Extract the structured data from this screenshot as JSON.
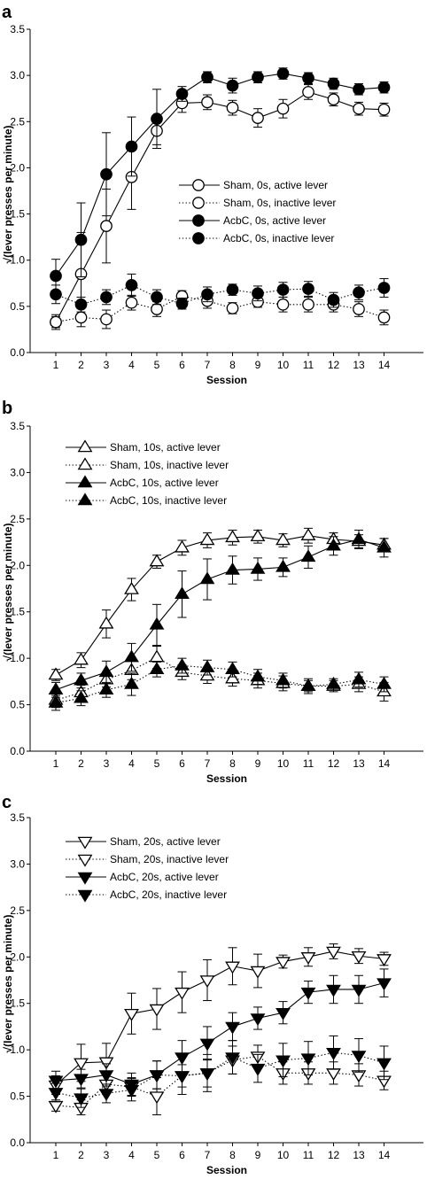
{
  "chart_data": [
    {
      "type": "line",
      "panel_label": "a",
      "xlabel": "Session",
      "ylabel": "√(lever presses per minute)",
      "x": [
        1,
        2,
        3,
        4,
        5,
        6,
        7,
        8,
        9,
        10,
        11,
        12,
        13,
        14
      ],
      "xticks": [
        "1",
        "2",
        "3",
        "4",
        "5",
        "6",
        "7",
        "8",
        "9",
        "10",
        "11",
        "12",
        "13",
        "14"
      ],
      "ylim": [
        0,
        3.5
      ],
      "yticks": [
        "0.0",
        "0.5",
        "1.0",
        "1.5",
        "2.0",
        "2.5",
        "3.0",
        "3.5"
      ],
      "legend_position": "center-right",
      "marker": "circle",
      "series": [
        {
          "name": "Sham, 0s, active lever",
          "filled": false,
          "line": "solid",
          "values": [
            0.33,
            0.85,
            1.37,
            1.9,
            2.4,
            2.7,
            2.71,
            2.65,
            2.54,
            2.64,
            2.82,
            2.74,
            2.64,
            2.63
          ],
          "errors": [
            0.08,
            0.45,
            0.4,
            0.35,
            0.15,
            0.1,
            0.08,
            0.08,
            0.1,
            0.1,
            0.08,
            0.07,
            0.07,
            0.07
          ]
        },
        {
          "name": "Sham, 0s, inactive lever",
          "filled": false,
          "line": "dotted",
          "values": [
            0.33,
            0.38,
            0.36,
            0.54,
            0.47,
            0.61,
            0.56,
            0.48,
            0.55,
            0.52,
            0.52,
            0.52,
            0.47,
            0.38
          ],
          "errors": [
            0.06,
            0.1,
            0.1,
            0.08,
            0.08,
            0.06,
            0.08,
            0.06,
            0.06,
            0.08,
            0.08,
            0.08,
            0.08,
            0.08
          ]
        },
        {
          "name": "AcbC, 0s, active lever",
          "filled": true,
          "line": "solid",
          "values": [
            0.83,
            1.22,
            1.93,
            2.23,
            2.53,
            2.8,
            2.98,
            2.89,
            2.98,
            3.02,
            2.97,
            2.91,
            2.85,
            2.87
          ],
          "errors": [
            0.18,
            0.4,
            0.45,
            0.32,
            0.32,
            0.08,
            0.06,
            0.08,
            0.06,
            0.06,
            0.06,
            0.06,
            0.06,
            0.06
          ]
        },
        {
          "name": "AcbC, 0s, inactive lever",
          "filled": true,
          "line": "dotted",
          "values": [
            0.63,
            0.52,
            0.6,
            0.73,
            0.6,
            0.53,
            0.63,
            0.68,
            0.64,
            0.68,
            0.69,
            0.57,
            0.65,
            0.7
          ],
          "errors": [
            0.1,
            0.08,
            0.08,
            0.12,
            0.08,
            0.06,
            0.08,
            0.06,
            0.08,
            0.08,
            0.08,
            0.08,
            0.08,
            0.1
          ]
        }
      ]
    },
    {
      "type": "line",
      "panel_label": "b",
      "xlabel": "Session",
      "ylabel": "√(lever presses per minute)",
      "x": [
        1,
        2,
        3,
        4,
        5,
        6,
        7,
        8,
        9,
        10,
        11,
        12,
        13,
        14
      ],
      "xticks": [
        "1",
        "2",
        "3",
        "4",
        "5",
        "6",
        "7",
        "8",
        "9",
        "10",
        "11",
        "12",
        "13",
        "14"
      ],
      "ylim": [
        0,
        3.5
      ],
      "yticks": [
        "0.0",
        "0.5",
        "1.0",
        "1.5",
        "2.0",
        "2.5",
        "3.0",
        "3.5"
      ],
      "legend_position": "top-left",
      "marker": "triangle-up",
      "series": [
        {
          "name": "Sham, 10s, active lever",
          "filled": false,
          "line": "solid",
          "values": [
            0.82,
            0.98,
            1.37,
            1.74,
            2.04,
            2.19,
            2.27,
            2.3,
            2.31,
            2.27,
            2.32,
            2.28,
            2.26,
            2.22
          ],
          "errors": [
            0.06,
            0.08,
            0.15,
            0.12,
            0.07,
            0.08,
            0.08,
            0.08,
            0.07,
            0.07,
            0.08,
            0.07,
            0.07,
            0.07
          ]
        },
        {
          "name": "Sham, 10s, inactive lever",
          "filled": false,
          "line": "dotted",
          "values": [
            0.55,
            0.63,
            0.77,
            0.87,
            1.01,
            0.85,
            0.81,
            0.78,
            0.76,
            0.73,
            0.7,
            0.7,
            0.72,
            0.64
          ],
          "errors": [
            0.08,
            0.08,
            0.08,
            0.1,
            0.12,
            0.08,
            0.08,
            0.08,
            0.08,
            0.08,
            0.08,
            0.06,
            0.08,
            0.1
          ]
        },
        {
          "name": "AcbC, 10s, active lever",
          "filled": true,
          "line": "solid",
          "values": [
            0.66,
            0.76,
            0.85,
            1.01,
            1.36,
            1.69,
            1.85,
            1.95,
            1.96,
            1.98,
            2.09,
            2.21,
            2.28,
            2.19
          ],
          "errors": [
            0.08,
            0.08,
            0.12,
            0.15,
            0.22,
            0.25,
            0.22,
            0.15,
            0.12,
            0.1,
            0.12,
            0.1,
            0.1,
            0.1
          ]
        },
        {
          "name": "AcbC, 10s, inactive lever",
          "filled": true,
          "line": "dotted",
          "values": [
            0.52,
            0.57,
            0.66,
            0.72,
            0.88,
            0.92,
            0.9,
            0.88,
            0.8,
            0.76,
            0.7,
            0.72,
            0.77,
            0.72
          ],
          "errors": [
            0.08,
            0.08,
            0.08,
            0.12,
            0.08,
            0.08,
            0.08,
            0.08,
            0.08,
            0.08,
            0.06,
            0.06,
            0.08,
            0.08
          ]
        }
      ]
    },
    {
      "type": "line",
      "panel_label": "c",
      "xlabel": "Session",
      "ylabel": "√(lever presses per minute)",
      "x": [
        1,
        2,
        3,
        4,
        5,
        6,
        7,
        8,
        9,
        10,
        11,
        12,
        13,
        14
      ],
      "xticks": [
        "1",
        "2",
        "3",
        "4",
        "5",
        "6",
        "7",
        "8",
        "9",
        "10",
        "11",
        "12",
        "13",
        "14"
      ],
      "ylim": [
        0,
        3.5
      ],
      "yticks": [
        "0.0",
        "0.5",
        "1.0",
        "1.5",
        "2.0",
        "2.5",
        "3.0",
        "3.5"
      ],
      "legend_position": "top-left",
      "marker": "triangle-down",
      "series": [
        {
          "name": "Sham, 20s, active lever",
          "filled": false,
          "line": "solid",
          "values": [
            0.62,
            0.86,
            0.87,
            1.39,
            1.44,
            1.62,
            1.75,
            1.9,
            1.85,
            1.95,
            2.0,
            2.06,
            2.01,
            1.98
          ],
          "errors": [
            0.1,
            0.2,
            0.2,
            0.22,
            0.22,
            0.22,
            0.22,
            0.2,
            0.18,
            0.07,
            0.1,
            0.08,
            0.08,
            0.07
          ]
        },
        {
          "name": "Sham, 20s, inactive lever",
          "filled": false,
          "line": "dotted",
          "values": [
            0.4,
            0.38,
            0.63,
            0.6,
            0.5,
            0.72,
            0.75,
            0.89,
            0.93,
            0.75,
            0.75,
            0.75,
            0.73,
            0.67
          ],
          "errors": [
            0.06,
            0.08,
            0.1,
            0.1,
            0.2,
            0.12,
            0.15,
            0.15,
            0.12,
            0.12,
            0.12,
            0.12,
            0.12,
            0.1
          ]
        },
        {
          "name": "AcbC, 20s, active lever",
          "filled": true,
          "line": "solid",
          "values": [
            0.67,
            0.69,
            0.73,
            0.63,
            0.73,
            0.92,
            1.07,
            1.25,
            1.34,
            1.4,
            1.62,
            1.65,
            1.65,
            1.72
          ],
          "errors": [
            0.1,
            0.1,
            0.12,
            0.12,
            0.15,
            0.18,
            0.18,
            0.15,
            0.12,
            0.12,
            0.12,
            0.15,
            0.15,
            0.15
          ]
        },
        {
          "name": "AcbC, 20s, inactive lever",
          "filled": true,
          "line": "dotted",
          "values": [
            0.54,
            0.48,
            0.53,
            0.57,
            0.73,
            0.72,
            0.75,
            0.92,
            0.8,
            0.89,
            0.91,
            0.97,
            0.94,
            0.86
          ],
          "errors": [
            0.1,
            0.1,
            0.1,
            0.12,
            0.15,
            0.2,
            0.2,
            0.18,
            0.15,
            0.18,
            0.18,
            0.18,
            0.18,
            0.18
          ]
        }
      ]
    }
  ]
}
